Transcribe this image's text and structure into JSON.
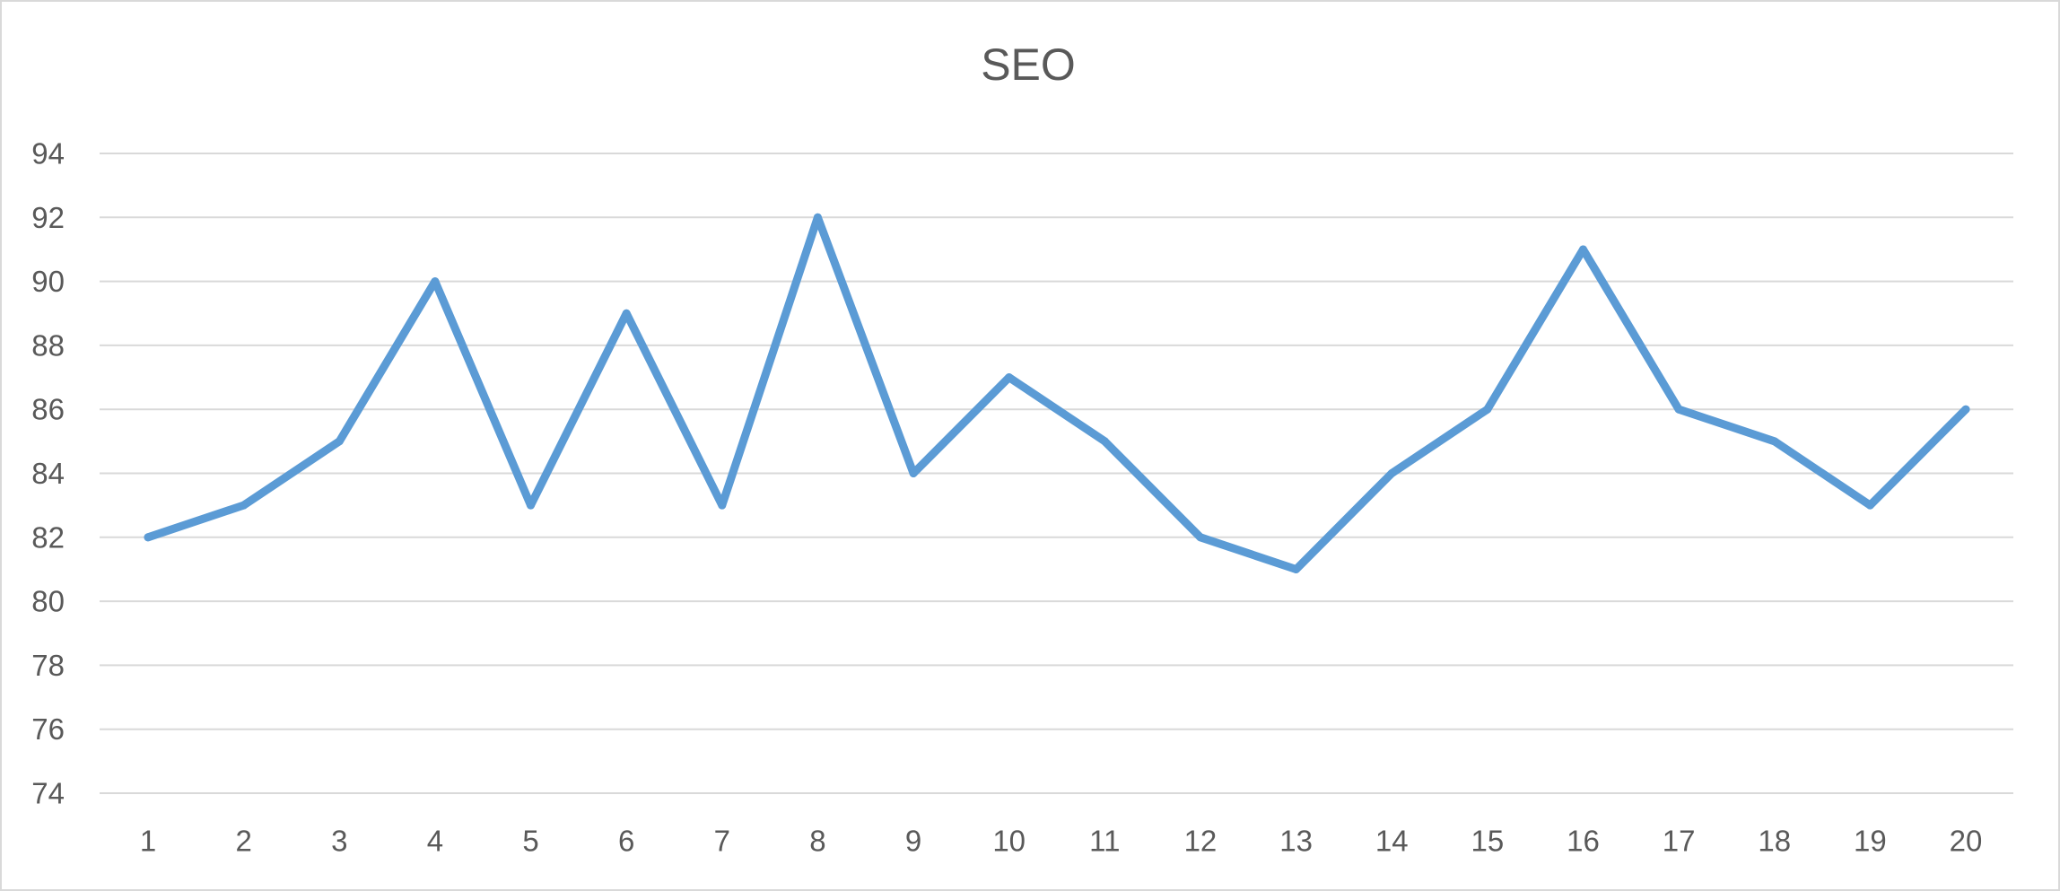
{
  "chart_data": {
    "type": "line",
    "title": "SEO",
    "xlabel": "",
    "ylabel": "",
    "categories": [
      "1",
      "2",
      "3",
      "4",
      "5",
      "6",
      "7",
      "8",
      "9",
      "10",
      "11",
      "12",
      "13",
      "14",
      "15",
      "16",
      "17",
      "18",
      "19",
      "20"
    ],
    "series": [
      {
        "values": [
          82,
          83,
          85,
          90,
          83,
          89,
          83,
          92,
          84,
          87,
          85,
          82,
          81,
          84,
          86,
          91,
          86,
          85,
          83,
          86
        ],
        "color": "#5b9bd5"
      }
    ],
    "ylim": [
      74,
      94
    ],
    "ytick_step": 2,
    "grid": true,
    "legend": "none"
  }
}
